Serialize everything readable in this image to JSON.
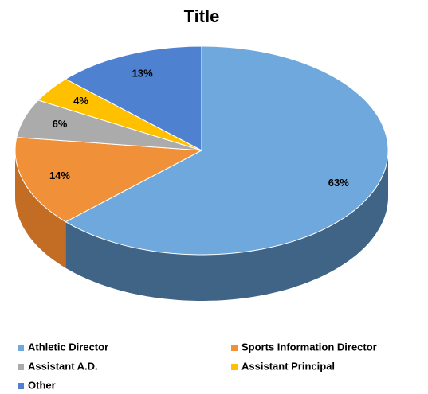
{
  "chart_data": {
    "type": "pie",
    "title": "Title",
    "categories": [
      "Athletic Director",
      "Sports Information Director",
      "Assistant A.D.",
      "Assistant Principal",
      "Other"
    ],
    "values": [
      63,
      14,
      6,
      4,
      13
    ],
    "value_labels": [
      "63%",
      "14%",
      "6%",
      "4%",
      "13%"
    ],
    "colors": [
      "#6FA8DC",
      "#F0913A",
      "#ABABAB",
      "#FFC000",
      "#4F81D1"
    ],
    "side_colors": [
      "#3F6485",
      "#C36C24",
      "#858585",
      "#C79500",
      "#34599A"
    ]
  }
}
